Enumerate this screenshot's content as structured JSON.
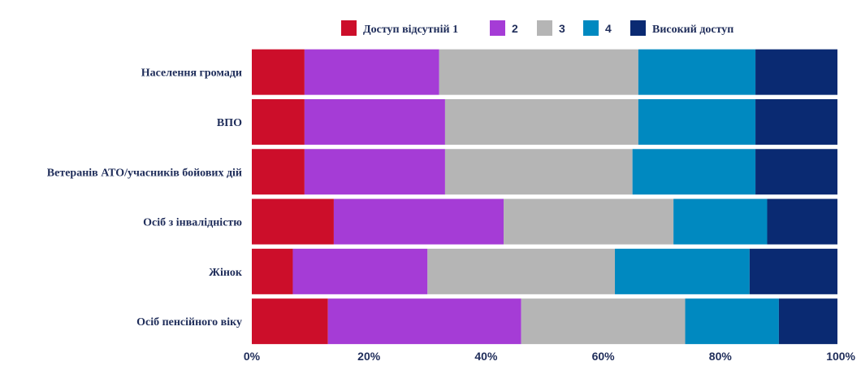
{
  "chart_data": {
    "type": "bar",
    "orientation": "horizontal",
    "stacked": "percent",
    "categories": [
      "Населення громади",
      "ВПО",
      "Ветеранів АТО/учасників бойових дій",
      "Осіб з інвалідністю",
      "Жінок",
      "Осіб пенсійного віку"
    ],
    "series": [
      {
        "name": "Доступ відсутній 1",
        "color": "#cc0e2a",
        "values": [
          9,
          9,
          9,
          14,
          7,
          13
        ]
      },
      {
        "name": "2",
        "color": "#a53cd6",
        "values": [
          23,
          24,
          24,
          29,
          23,
          33
        ]
      },
      {
        "name": "3",
        "color": "#b5b5b5",
        "values": [
          34,
          33,
          32,
          29,
          32,
          28
        ]
      },
      {
        "name": "4",
        "color": "#0089c0",
        "values": [
          20,
          20,
          21,
          16,
          23,
          16
        ]
      },
      {
        "name": "Високий доступ",
        "color": "#0a2a72",
        "values": [
          14,
          14,
          14,
          12,
          15,
          10
        ]
      }
    ],
    "xlim": [
      0,
      100
    ],
    "x_ticks": [
      "0%",
      "20%",
      "40%",
      "60%",
      "80%",
      "100%"
    ],
    "legend_position": "top",
    "grid": false,
    "xlabel": "",
    "ylabel": "",
    "title": ""
  }
}
